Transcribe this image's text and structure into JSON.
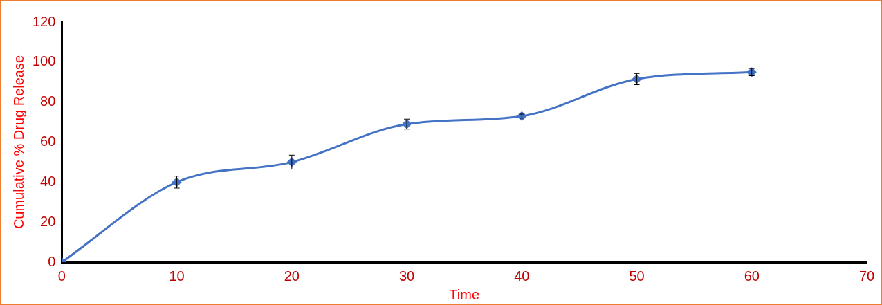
{
  "chart_data": {
    "type": "line",
    "xlabel": "Time",
    "ylabel": "Cumulative % Drug Release",
    "x": [
      0,
      10,
      20,
      30,
      40,
      50,
      60
    ],
    "series": [
      {
        "color": "#4472c4",
        "values": [
          0,
          40,
          50,
          69,
          73,
          91.5,
          95
        ],
        "errors": [
          null,
          3,
          3.5,
          2.5,
          1,
          2.8,
          1.8
        ]
      }
    ],
    "xlim": [
      0,
      70
    ],
    "xticks": [
      0,
      10,
      20,
      30,
      40,
      50,
      60,
      70
    ],
    "ylim": [
      0,
      120
    ],
    "yticks": [
      0,
      20,
      40,
      60,
      80,
      100,
      120
    ],
    "grid": false,
    "legend": false,
    "marker": "diamond",
    "line_style": "solid"
  }
}
